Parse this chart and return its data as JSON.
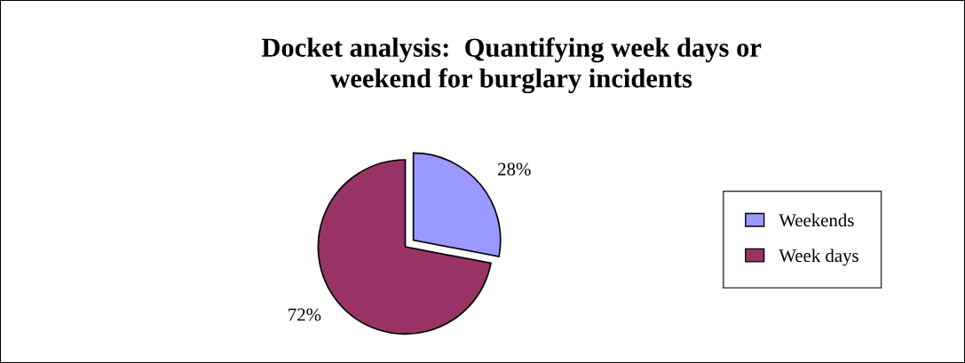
{
  "chart_data": {
    "type": "pie",
    "title": "Docket analysis:  Quantifying week days or\nweekend for burglary incidents",
    "categories": [
      "Weekends",
      "Week days"
    ],
    "values": [
      28,
      72
    ],
    "colors": [
      "#9999ff",
      "#993366"
    ],
    "value_labels": [
      "28%",
      "72%"
    ],
    "legend": "right"
  }
}
